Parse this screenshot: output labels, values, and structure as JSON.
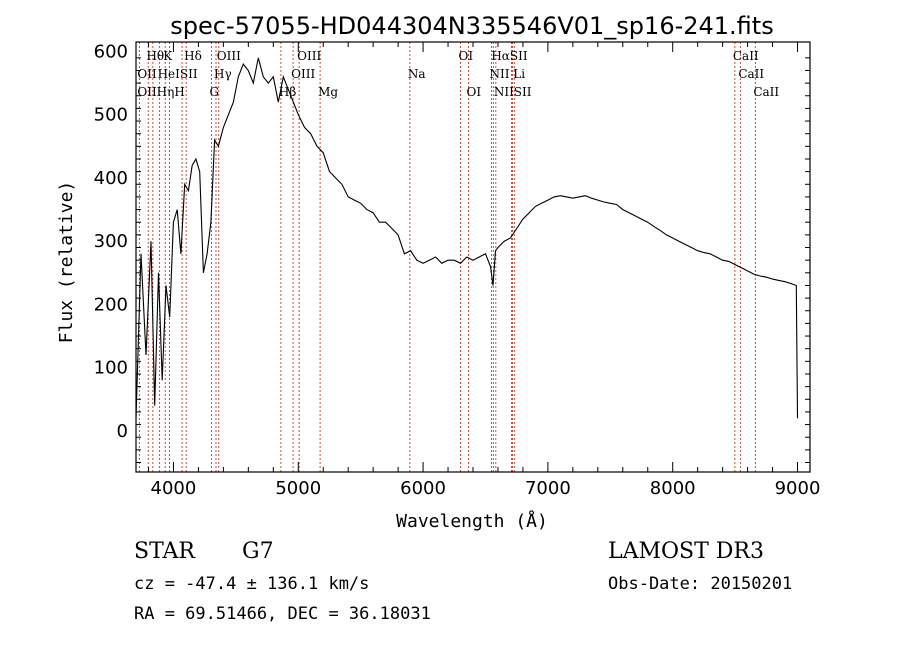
{
  "chart_data": {
    "type": "line",
    "title": "spec-57055-HD044304N335546V01_sp16-241.fits",
    "xlabel": "Wavelength (Å)",
    "ylabel": "Flux (relative)",
    "xlim": [
      3700,
      9100
    ],
    "ylim": [
      -65,
      615
    ],
    "xticks": [
      4000,
      5000,
      6000,
      7000,
      8000,
      9000
    ],
    "yticks": [
      0,
      100,
      200,
      300,
      400,
      500,
      600
    ],
    "grid": false,
    "series": [
      {
        "name": "spectrum",
        "x": [
          3700,
          3740,
          3780,
          3820,
          3850,
          3880,
          3910,
          3940,
          3970,
          4000,
          4030,
          4060,
          4090,
          4120,
          4150,
          4180,
          4210,
          4240,
          4270,
          4300,
          4330,
          4360,
          4400,
          4440,
          4480,
          4520,
          4560,
          4600,
          4640,
          4680,
          4720,
          4760,
          4800,
          4840,
          4880,
          4920,
          4960,
          5000,
          5050,
          5100,
          5150,
          5200,
          5250,
          5300,
          5350,
          5400,
          5450,
          5500,
          5550,
          5600,
          5650,
          5700,
          5750,
          5800,
          5850,
          5900,
          5950,
          6000,
          6050,
          6100,
          6150,
          6200,
          6250,
          6300,
          6350,
          6400,
          6450,
          6500,
          6540,
          6560,
          6580,
          6600,
          6650,
          6700,
          6750,
          6800,
          6850,
          6900,
          6950,
          7000,
          7050,
          7100,
          7150,
          7200,
          7250,
          7300,
          7350,
          7400,
          7450,
          7500,
          7550,
          7600,
          7650,
          7700,
          7750,
          7800,
          7850,
          7900,
          7950,
          8000,
          8050,
          8100,
          8150,
          8200,
          8250,
          8300,
          8350,
          8400,
          8450,
          8500,
          8550,
          8600,
          8650,
          8700,
          8750,
          8800,
          8850,
          8900,
          8950,
          8990,
          9000
        ],
        "y": [
          20,
          280,
          120,
          300,
          40,
          250,
          80,
          230,
          180,
          330,
          350,
          280,
          390,
          380,
          420,
          430,
          410,
          250,
          280,
          330,
          460,
          450,
          480,
          500,
          520,
          560,
          580,
          570,
          550,
          590,
          560,
          550,
          560,
          520,
          560,
          540,
          520,
          500,
          480,
          470,
          450,
          440,
          410,
          400,
          390,
          370,
          365,
          360,
          350,
          345,
          330,
          330,
          320,
          310,
          280,
          285,
          270,
          265,
          270,
          275,
          265,
          270,
          270,
          265,
          275,
          270,
          275,
          280,
          260,
          230,
          285,
          290,
          300,
          305,
          320,
          335,
          345,
          355,
          360,
          365,
          370,
          372,
          370,
          368,
          370,
          372,
          368,
          365,
          362,
          360,
          358,
          350,
          345,
          340,
          335,
          330,
          323,
          317,
          310,
          305,
          300,
          295,
          290,
          285,
          282,
          280,
          275,
          270,
          268,
          263,
          258,
          253,
          248,
          245,
          243,
          240,
          238,
          236,
          233,
          230,
          20
        ]
      }
    ],
    "lines": [
      {
        "name": "Hθ",
        "x": 3798
      },
      {
        "name": "OII",
        "x": 3727
      },
      {
        "name": "Hη",
        "x": 3835
      },
      {
        "name": "HeI",
        "x": 3889
      },
      {
        "name": "K",
        "x": 3934
      },
      {
        "name": "H",
        "x": 3968
      },
      {
        "name": "SII",
        "x": 4069
      },
      {
        "name": "Hδ",
        "x": 4102
      },
      {
        "name": "OIII",
        "x": 4363
      },
      {
        "name": "Hγ",
        "x": 4341
      },
      {
        "name": "G",
        "x": 4305
      },
      {
        "name": "Hβ",
        "x": 4861
      },
      {
        "name": "OIII",
        "x": 4959
      },
      {
        "name": "OIII",
        "x": 5007
      },
      {
        "name": "Mg",
        "x": 5175
      },
      {
        "name": "Na",
        "x": 5894
      },
      {
        "name": "OI",
        "x": 6300
      },
      {
        "name": "OI",
        "x": 6364
      },
      {
        "name": "Hα",
        "x": 6563
      },
      {
        "name": "NII",
        "x": 6548
      },
      {
        "name": "NII",
        "x": 6583
      },
      {
        "name": "Li",
        "x": 6708
      },
      {
        "name": "SII",
        "x": 6717
      },
      {
        "name": "SII",
        "x": 6731
      },
      {
        "name": "CaII",
        "x": 8498
      },
      {
        "name": "CaII",
        "x": 8542
      },
      {
        "name": "CaII",
        "x": 8662
      }
    ],
    "line_labels": [
      {
        "text": "Hθ",
        "x": 3800,
        "row": 0
      },
      {
        "text": "K",
        "x": 3934,
        "row": 0
      },
      {
        "text": "Hδ",
        "x": 4102,
        "row": 0
      },
      {
        "text": "OIII",
        "x": 4363,
        "row": 0
      },
      {
        "text": "OIII",
        "x": 5007,
        "row": 0
      },
      {
        "text": "OI",
        "x": 6300,
        "row": 0
      },
      {
        "text": "HαSII",
        "x": 6563,
        "row": 0
      },
      {
        "text": "CaII",
        "x": 8498,
        "row": 0
      },
      {
        "text": "OII",
        "x": 3727,
        "row": 1
      },
      {
        "text": "HeISII",
        "x": 3889,
        "row": 1
      },
      {
        "text": "Hγ",
        "x": 4341,
        "row": 1
      },
      {
        "text": "OIII",
        "x": 4959,
        "row": 1
      },
      {
        "text": "Na",
        "x": 5894,
        "row": 1
      },
      {
        "text": "NII Li",
        "x": 6548,
        "row": 1
      },
      {
        "text": "CaII",
        "x": 8542,
        "row": 1
      },
      {
        "text": "OIIHηH",
        "x": 3727,
        "row": 2
      },
      {
        "text": "G",
        "x": 4305,
        "row": 2
      },
      {
        "text": "Hβ",
        "x": 4861,
        "row": 2
      },
      {
        "text": "Mg",
        "x": 5175,
        "row": 2
      },
      {
        "text": "OI",
        "x": 6364,
        "row": 2
      },
      {
        "text": "NIISII",
        "x": 6583,
        "row": 2
      },
      {
        "text": "CaII",
        "x": 8662,
        "row": 2
      }
    ]
  },
  "info": {
    "object_type": "STAR",
    "subclass": "G7",
    "survey": "LAMOST DR3",
    "cz": "cz = -47.4 ± 136.1 km/s",
    "obs_date": "Obs-Date: 20150201",
    "coords": "RA =  69.51466, DEC =  36.18031"
  },
  "colors": {
    "spectrum": "#000000",
    "line_marker": "#c0392b",
    "axes": "#000000",
    "background": "#ffffff"
  }
}
